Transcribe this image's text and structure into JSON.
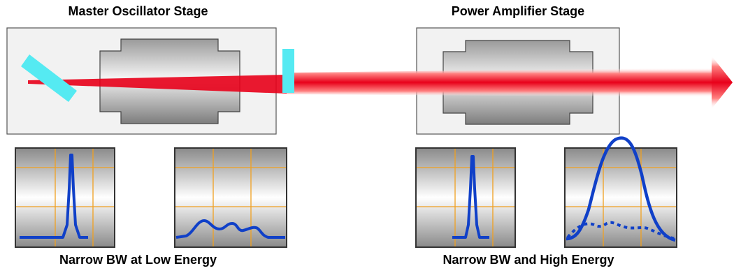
{
  "diagram": {
    "stage1_title": "Master Oscillator Stage",
    "stage2_title": "Power Amplifier Stage",
    "caption_left": "Narrow BW at Low Energy",
    "caption_right": "Narrow BW and High Energy",
    "colors": {
      "beam": "#e8001a",
      "optics": "#55eaf2",
      "spectrum_line": "#1040c8",
      "grid": "#f0a020",
      "box_fill": "#f2f2f2",
      "box_border": "#555555"
    },
    "spectra": [
      {
        "id": "mo-output",
        "shape": "narrow-peak",
        "height": "high"
      },
      {
        "id": "mo-broadband",
        "shape": "broad-low-bumpy",
        "height": "low"
      },
      {
        "id": "pa-input",
        "shape": "narrow-peak",
        "height": "high"
      },
      {
        "id": "pa-output",
        "shape": "broad-high-peak-with-dotted-baseline",
        "height": "high"
      }
    ]
  }
}
